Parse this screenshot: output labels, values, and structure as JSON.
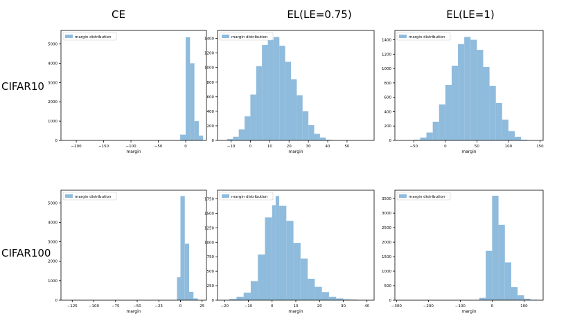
{
  "column_titles": [
    "CE",
    "EL(LE=0.75)",
    "EL(LE=1)"
  ],
  "row_titles": [
    "CIFAR10",
    "CIFAR100"
  ],
  "colors": {
    "bar": "#8fbbdd",
    "axis": "#000000"
  },
  "chart_data": [
    {
      "type": "bar",
      "row": "CIFAR10",
      "column": "CE",
      "xlabel": "margin",
      "ylabel": "",
      "legend": "margin distribution",
      "legend_loc": "upper-left",
      "xlim": [
        -228,
        38
      ],
      "ylim": [
        0,
        5700
      ],
      "xticks": [
        -200,
        -150,
        -100,
        -50,
        0
      ],
      "yticks": [
        0,
        1000,
        2000,
        3000,
        4000,
        5000
      ],
      "bins": [
        [
          -10,
          0,
          300
        ],
        [
          0,
          8,
          5350
        ],
        [
          8,
          16,
          4000
        ],
        [
          16,
          24,
          1000
        ],
        [
          24,
          32,
          250
        ]
      ]
    },
    {
      "type": "bar",
      "row": "CIFAR10",
      "column": "EL(LE=0.75)",
      "xlabel": "margin",
      "ylabel": "",
      "legend": "margin distribution",
      "legend_loc": "upper-left",
      "xlim": [
        -17,
        64
      ],
      "ylim": [
        0,
        1510
      ],
      "xticks": [
        -10,
        0,
        10,
        20,
        30,
        40,
        50
      ],
      "yticks": [
        0,
        200,
        400,
        600,
        800,
        1000,
        1200,
        1400
      ],
      "bins": [
        [
          -12,
          -9,
          20
        ],
        [
          -9,
          -6,
          50
        ],
        [
          -6,
          -3,
          150
        ],
        [
          -3,
          0,
          330
        ],
        [
          0,
          3,
          630
        ],
        [
          3,
          6,
          1020
        ],
        [
          6,
          9,
          1310
        ],
        [
          9,
          12,
          1380
        ],
        [
          12,
          15,
          1420
        ],
        [
          15,
          18,
          1300
        ],
        [
          18,
          21,
          1080
        ],
        [
          21,
          24,
          840
        ],
        [
          24,
          27,
          620
        ],
        [
          27,
          30,
          400
        ],
        [
          30,
          33,
          210
        ],
        [
          33,
          36,
          90
        ],
        [
          36,
          39,
          40
        ],
        [
          39,
          42,
          10
        ]
      ]
    },
    {
      "type": "bar",
      "row": "CIFAR10",
      "column": "EL(LE=1)",
      "xlabel": "margin",
      "ylabel": "",
      "legend": "margin distribution",
      "legend_loc": "upper-left",
      "xlim": [
        -80,
        155
      ],
      "ylim": [
        0,
        1530
      ],
      "xticks": [
        -50,
        0,
        50,
        100,
        150
      ],
      "yticks": [
        0,
        200,
        400,
        600,
        800,
        1000,
        1200,
        1400
      ],
      "bins": [
        [
          -50,
          -40,
          10
        ],
        [
          -40,
          -30,
          40
        ],
        [
          -30,
          -20,
          110
        ],
        [
          -20,
          -10,
          260
        ],
        [
          -10,
          0,
          500
        ],
        [
          0,
          10,
          770
        ],
        [
          10,
          20,
          1040
        ],
        [
          20,
          30,
          1340
        ],
        [
          30,
          40,
          1440
        ],
        [
          40,
          50,
          1400
        ],
        [
          50,
          60,
          1260
        ],
        [
          60,
          70,
          1020
        ],
        [
          70,
          80,
          760
        ],
        [
          80,
          90,
          520
        ],
        [
          90,
          100,
          290
        ],
        [
          100,
          110,
          130
        ],
        [
          110,
          120,
          50
        ],
        [
          120,
          130,
          10
        ]
      ]
    },
    {
      "type": "bar",
      "row": "CIFAR100",
      "column": "CE",
      "xlabel": "margin",
      "ylabel": "",
      "legend": "margin distribution",
      "legend_loc": "upper-left",
      "xlim": [
        -138,
        30
      ],
      "ylim": [
        0,
        5650
      ],
      "xticks": [
        -125,
        -100,
        -75,
        -50,
        -25,
        0,
        25
      ],
      "yticks": [
        0,
        1000,
        2000,
        3000,
        4000,
        5000
      ],
      "bins": [
        [
          -4,
          0,
          1180
        ],
        [
          0,
          5,
          5350
        ],
        [
          5,
          10,
          2900
        ],
        [
          10,
          15,
          430
        ],
        [
          15,
          20,
          90
        ]
      ]
    },
    {
      "type": "bar",
      "row": "CIFAR100",
      "column": "EL(LE=0.75)",
      "xlabel": "margin",
      "ylabel": "",
      "legend": "margin distribution",
      "legend_loc": "upper-left",
      "xlim": [
        -23,
        43
      ],
      "ylim": [
        0,
        1900
      ],
      "xticks": [
        -20,
        -10,
        0,
        10,
        20,
        30,
        40
      ],
      "yticks": [
        0,
        250,
        500,
        750,
        1000,
        1250,
        1500,
        1750
      ],
      "bins": [
        [
          -18,
          -15,
          20
        ],
        [
          -15,
          -12,
          60
        ],
        [
          -12,
          -9,
          130
        ],
        [
          -9,
          -6,
          330
        ],
        [
          -6,
          -3,
          790
        ],
        [
          -3,
          0,
          1430
        ],
        [
          0,
          1.5,
          1640
        ],
        [
          1.5,
          3,
          1800
        ],
        [
          3,
          6,
          1630
        ],
        [
          6,
          9,
          1370
        ],
        [
          9,
          12,
          990
        ],
        [
          12,
          15,
          720
        ],
        [
          15,
          18,
          370
        ],
        [
          18,
          21,
          230
        ],
        [
          21,
          24,
          140
        ],
        [
          24,
          27,
          60
        ],
        [
          27,
          30,
          30
        ],
        [
          30,
          33,
          15
        ],
        [
          33,
          36,
          10
        ]
      ]
    },
    {
      "type": "bar",
      "row": "CIFAR100",
      "column": "EL(LE=1)",
      "xlabel": "margin",
      "ylabel": "",
      "legend": "margin distribution",
      "legend_loc": "upper-left",
      "xlim": [
        -305,
        160
      ],
      "ylim": [
        0,
        3790
      ],
      "xticks": [
        -300,
        -200,
        -100,
        0,
        100
      ],
      "yticks": [
        0,
        500,
        1000,
        1500,
        2000,
        2500,
        3000,
        3500
      ],
      "bins": [
        [
          -40,
          -20,
          80
        ],
        [
          -20,
          0,
          1700
        ],
        [
          0,
          20,
          3600
        ],
        [
          20,
          40,
          2600
        ],
        [
          40,
          60,
          1300
        ],
        [
          60,
          80,
          450
        ],
        [
          80,
          100,
          170
        ],
        [
          100,
          120,
          50
        ],
        [
          120,
          140,
          15
        ]
      ]
    }
  ]
}
